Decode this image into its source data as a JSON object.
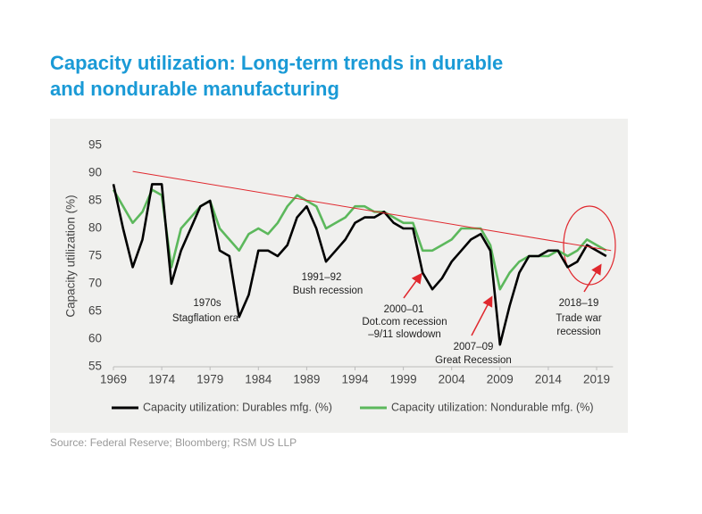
{
  "chart_data": {
    "type": "line",
    "title": [
      "Capacity utilization: Long-term trends in durable",
      "and nondurable manufacturing"
    ],
    "y_label": "Capacity utilization (%)",
    "source": "Source: Federal Reserve; Bloomberg; RSM US LLP",
    "x": [
      1969,
      1970,
      1971,
      1972,
      1973,
      1974,
      1975,
      1976,
      1977,
      1978,
      1979,
      1980,
      1981,
      1982,
      1983,
      1984,
      1985,
      1986,
      1987,
      1988,
      1989,
      1990,
      1991,
      1992,
      1993,
      1994,
      1995,
      1996,
      1997,
      1998,
      1999,
      2000,
      2001,
      2002,
      2003,
      2004,
      2005,
      2006,
      2007,
      2008,
      2009,
      2010,
      2011,
      2012,
      2013,
      2014,
      2015,
      2016,
      2017,
      2018,
      2019,
      2020
    ],
    "series": [
      {
        "name": "Capacity utilization: Durables mfg. (%)",
        "color": "#000000",
        "values": [
          88,
          80,
          73,
          78,
          88,
          88,
          70,
          76,
          80,
          84,
          85,
          76,
          75,
          64,
          68,
          76,
          76,
          75,
          77,
          82,
          84,
          80,
          74,
          76,
          78,
          81,
          82,
          82,
          83,
          81,
          80,
          80,
          72,
          69,
          71,
          74,
          76,
          78,
          79,
          76,
          59,
          66,
          72,
          75,
          75,
          76,
          76,
          73,
          74,
          77,
          76,
          75
        ]
      },
      {
        "name": "Capacity utilization: Nondurable mfg. (%)",
        "color": "#5cb85c",
        "values": [
          87,
          84,
          81,
          83,
          87,
          86,
          73,
          80,
          82,
          84,
          85,
          80,
          78,
          76,
          79,
          80,
          79,
          81,
          84,
          86,
          85,
          84,
          80,
          81,
          82,
          84,
          84,
          83,
          83,
          82,
          81,
          81,
          76,
          76,
          77,
          78,
          80,
          80,
          80,
          77,
          69,
          72,
          74,
          75,
          75,
          75,
          76,
          75,
          76,
          78,
          77,
          76
        ]
      }
    ],
    "trend_line": {
      "x": [
        1971,
        2020.5
      ],
      "values": [
        90.3,
        76
      ],
      "color": "#e0282e"
    },
    "xlim": [
      1969,
      2020.7
    ],
    "xticks": [
      1969,
      1974,
      1979,
      1984,
      1989,
      1994,
      1999,
      2004,
      2009,
      2014,
      2019
    ],
    "ylim": [
      55,
      95
    ],
    "yticks": [
      55,
      60,
      65,
      70,
      75,
      80,
      85,
      90,
      95
    ],
    "annotations": [
      [
        "1970s",
        "Stagflation era"
      ],
      [
        "1991–92",
        "Bush recession"
      ],
      [
        "2000–01",
        "Dot.com recession",
        "–9/11 slowdown"
      ],
      [
        "2007–09",
        "Great Recession"
      ],
      [
        "2018–19",
        "Trade war",
        "recession"
      ]
    ]
  }
}
